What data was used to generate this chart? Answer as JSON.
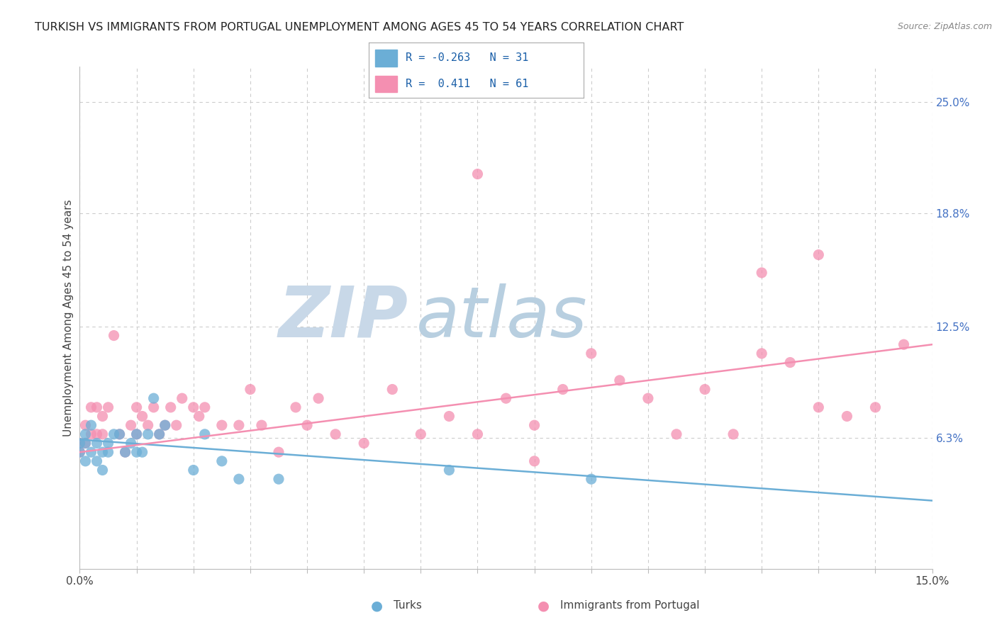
{
  "title": "TURKISH VS IMMIGRANTS FROM PORTUGAL UNEMPLOYMENT AMONG AGES 45 TO 54 YEARS CORRELATION CHART",
  "source": "Source: ZipAtlas.com",
  "ylabel": "Unemployment Among Ages 45 to 54 years",
  "xmin": 0.0,
  "xmax": 0.15,
  "ymin": -0.01,
  "ymax": 0.27,
  "right_ytick_vals": [
    0.0,
    0.063,
    0.125,
    0.188,
    0.25
  ],
  "right_yticklabels": [
    "",
    "6.3%",
    "12.5%",
    "18.8%",
    "25.0%"
  ],
  "legend_r_turks": "-0.263",
  "legend_n_turks": "31",
  "legend_r_portugal": " 0.411",
  "legend_n_portugal": "61",
  "turk_color": "#6baed6",
  "portugal_color": "#f48fb1",
  "background_color": "#ffffff",
  "watermark_zip_color": "#c8d8e8",
  "watermark_atlas_color": "#b8cfe0",
  "turk_scatter_x": [
    0.0,
    0.0,
    0.001,
    0.001,
    0.001,
    0.002,
    0.002,
    0.003,
    0.003,
    0.004,
    0.004,
    0.005,
    0.005,
    0.006,
    0.007,
    0.008,
    0.009,
    0.01,
    0.01,
    0.011,
    0.012,
    0.013,
    0.014,
    0.015,
    0.02,
    0.022,
    0.025,
    0.028,
    0.035,
    0.065,
    0.09
  ],
  "turk_scatter_y": [
    0.055,
    0.06,
    0.05,
    0.065,
    0.06,
    0.055,
    0.07,
    0.05,
    0.06,
    0.055,
    0.045,
    0.055,
    0.06,
    0.065,
    0.065,
    0.055,
    0.06,
    0.055,
    0.065,
    0.055,
    0.065,
    0.085,
    0.065,
    0.07,
    0.045,
    0.065,
    0.05,
    0.04,
    0.04,
    0.045,
    0.04
  ],
  "portugal_scatter_x": [
    0.0,
    0.0,
    0.001,
    0.001,
    0.002,
    0.002,
    0.003,
    0.003,
    0.004,
    0.004,
    0.005,
    0.006,
    0.007,
    0.008,
    0.009,
    0.01,
    0.01,
    0.011,
    0.012,
    0.013,
    0.014,
    0.015,
    0.016,
    0.017,
    0.018,
    0.02,
    0.021,
    0.022,
    0.025,
    0.028,
    0.03,
    0.032,
    0.035,
    0.038,
    0.04,
    0.042,
    0.045,
    0.05,
    0.055,
    0.06,
    0.065,
    0.07,
    0.075,
    0.08,
    0.085,
    0.09,
    0.095,
    0.1,
    0.105,
    0.11,
    0.115,
    0.12,
    0.125,
    0.13,
    0.135,
    0.14,
    0.145,
    0.12,
    0.13,
    0.07,
    0.08
  ],
  "portugal_scatter_y": [
    0.055,
    0.06,
    0.06,
    0.07,
    0.08,
    0.065,
    0.065,
    0.08,
    0.075,
    0.065,
    0.08,
    0.12,
    0.065,
    0.055,
    0.07,
    0.08,
    0.065,
    0.075,
    0.07,
    0.08,
    0.065,
    0.07,
    0.08,
    0.07,
    0.085,
    0.08,
    0.075,
    0.08,
    0.07,
    0.07,
    0.09,
    0.07,
    0.055,
    0.08,
    0.07,
    0.085,
    0.065,
    0.06,
    0.09,
    0.065,
    0.075,
    0.065,
    0.085,
    0.07,
    0.09,
    0.11,
    0.095,
    0.085,
    0.065,
    0.09,
    0.065,
    0.11,
    0.105,
    0.08,
    0.075,
    0.08,
    0.115,
    0.155,
    0.165,
    0.21,
    0.05
  ],
  "turk_line_y_start": 0.062,
  "turk_line_y_end": 0.028,
  "portugal_line_y_start": 0.055,
  "portugal_line_y_end": 0.115,
  "grid_color": "#cccccc",
  "grid_linestyle": "--",
  "spine_color": "#bbbbbb"
}
